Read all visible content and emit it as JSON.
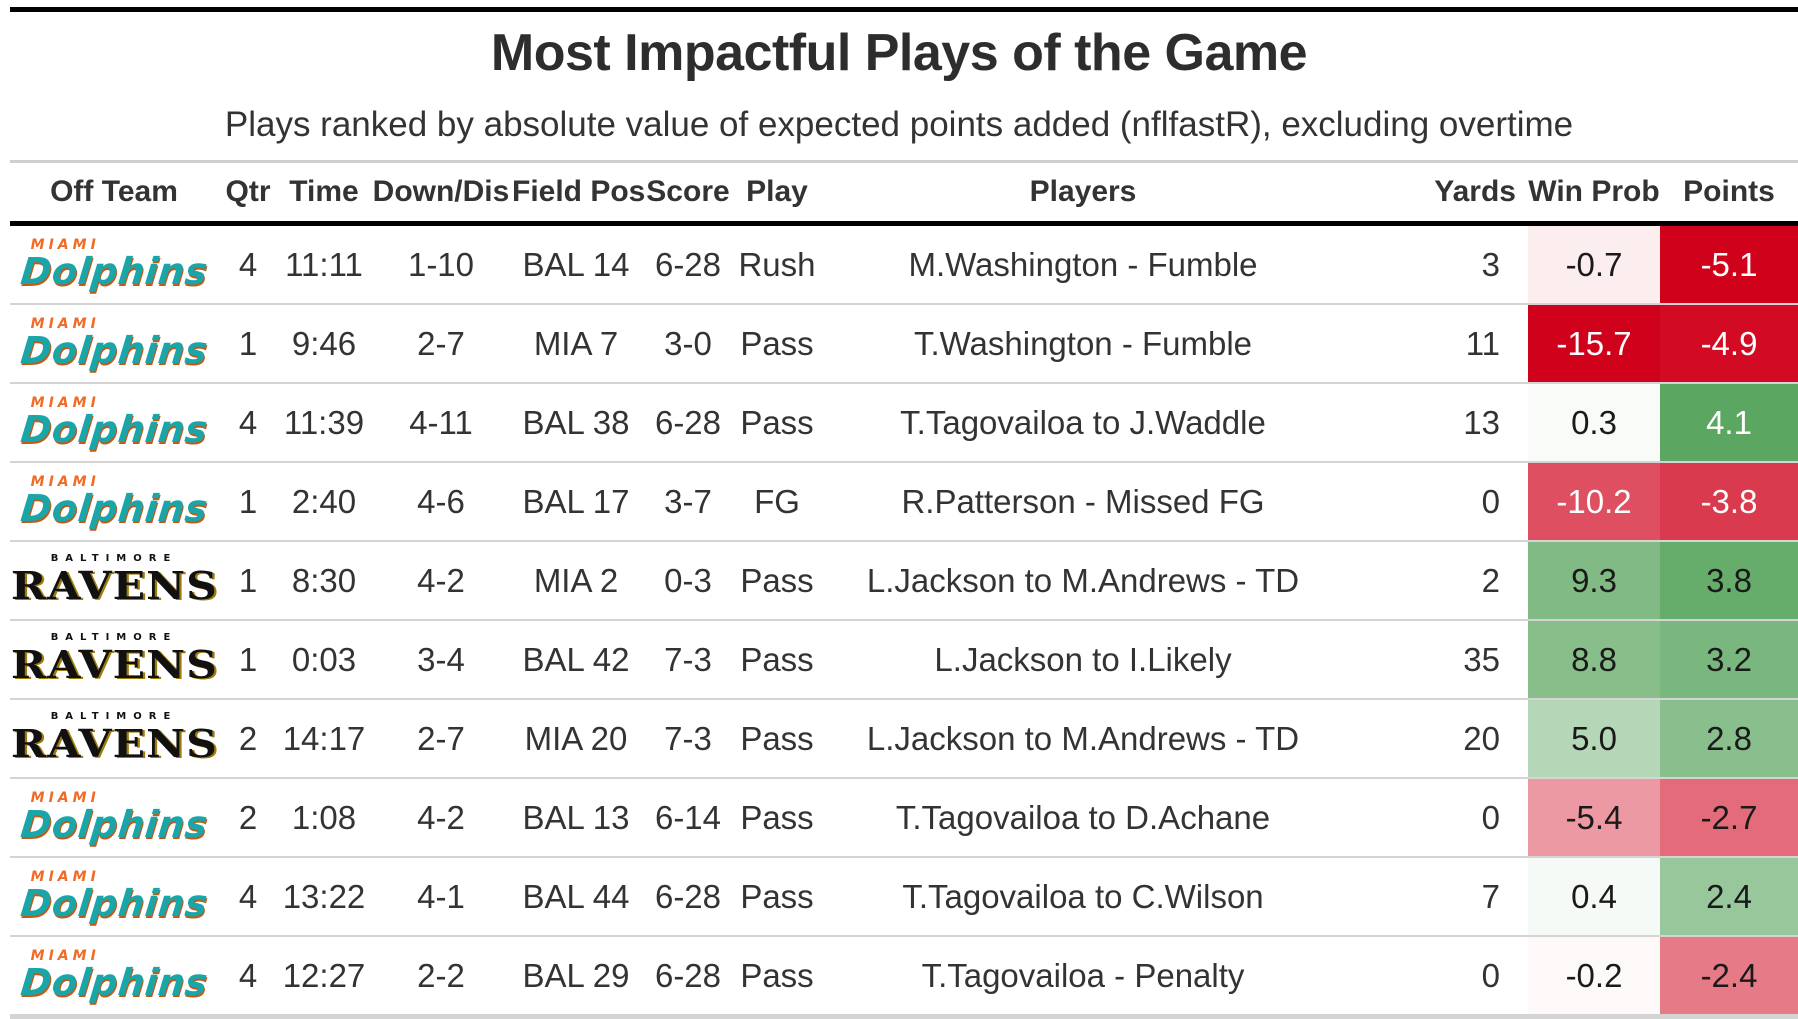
{
  "title": "Most Impactful Plays of the Game",
  "subtitle": "Plays ranked by absolute value of expected points added (nflfastR), excluding overtime",
  "columns": [
    "Off Team",
    "Qtr",
    "Time",
    "Down/Dis",
    "Field Pos",
    "Score",
    "Play",
    "Players",
    "Yards",
    "Win Prob",
    "Points"
  ],
  "team_logos": {
    "MIA": {
      "top": "MIAMI",
      "word": "Dolphins",
      "color": "#1aa5a9",
      "accent": "#f26a24"
    },
    "BAL": {
      "top": "BALTIMORE",
      "word": "RAVENS",
      "color": "#111111",
      "accent": "#9e7c0c"
    }
  },
  "color_scale": {
    "negative": "#d0021b",
    "neutral": "#ffffff",
    "positive": "#3a9440"
  },
  "chart_data": {
    "type": "table",
    "title": "Most Impactful Plays of the Game",
    "subtitle": "Plays ranked by absolute value of expected points added (nflfastR), excluding overtime",
    "rows": [
      {
        "team": "MIA",
        "qtr": "4",
        "time": "11:11",
        "down_dis": "1-10",
        "field_pos": "BAL 14",
        "score": "6-28",
        "play": "Rush",
        "players": "M.Washington - Fumble",
        "yards": "3",
        "win_prob": -0.7,
        "points": -5.1
      },
      {
        "team": "MIA",
        "qtr": "1",
        "time": "9:46",
        "down_dis": "2-7",
        "field_pos": "MIA 7",
        "score": "3-0",
        "play": "Pass",
        "players": "T.Washington - Fumble",
        "yards": "11",
        "win_prob": -15.7,
        "points": -4.9
      },
      {
        "team": "MIA",
        "qtr": "4",
        "time": "11:39",
        "down_dis": "4-11",
        "field_pos": "BAL 38",
        "score": "6-28",
        "play": "Pass",
        "players": "T.Tagovailoa to J.Waddle",
        "yards": "13",
        "win_prob": 0.3,
        "points": 4.1
      },
      {
        "team": "MIA",
        "qtr": "1",
        "time": "2:40",
        "down_dis": "4-6",
        "field_pos": "BAL 17",
        "score": "3-7",
        "play": "FG",
        "players": "R.Patterson - Missed FG",
        "yards": "0",
        "win_prob": -10.2,
        "points": -3.8
      },
      {
        "team": "BAL",
        "qtr": "1",
        "time": "8:30",
        "down_dis": "4-2",
        "field_pos": "MIA 2",
        "score": "0-3",
        "play": "Pass",
        "players": "L.Jackson to M.Andrews - TD",
        "yards": "2",
        "win_prob": 9.3,
        "points": 3.8
      },
      {
        "team": "BAL",
        "qtr": "1",
        "time": "0:03",
        "down_dis": "3-4",
        "field_pos": "BAL 42",
        "score": "7-3",
        "play": "Pass",
        "players": "L.Jackson to I.Likely",
        "yards": "35",
        "win_prob": 8.8,
        "points": 3.2
      },
      {
        "team": "BAL",
        "qtr": "2",
        "time": "14:17",
        "down_dis": "2-7",
        "field_pos": "MIA 20",
        "score": "7-3",
        "play": "Pass",
        "players": "L.Jackson to M.Andrews - TD",
        "yards": "20",
        "win_prob": 5.0,
        "points": 2.8
      },
      {
        "team": "MIA",
        "qtr": "2",
        "time": "1:08",
        "down_dis": "4-2",
        "field_pos": "BAL 13",
        "score": "6-14",
        "play": "Pass",
        "players": "T.Tagovailoa to D.Achane",
        "yards": "0",
        "win_prob": -5.4,
        "points": -2.7
      },
      {
        "team": "MIA",
        "qtr": "4",
        "time": "13:22",
        "down_dis": "4-1",
        "field_pos": "BAL 44",
        "score": "6-28",
        "play": "Pass",
        "players": "T.Tagovailoa to C.Wilson",
        "yards": "7",
        "win_prob": 0.4,
        "points": 2.4
      },
      {
        "team": "MIA",
        "qtr": "4",
        "time": "12:27",
        "down_dis": "2-2",
        "field_pos": "BAL 29",
        "score": "6-28",
        "play": "Pass",
        "players": "T.Tagovailoa - Penalty",
        "yards": "0",
        "win_prob": -0.2,
        "points": -2.4
      }
    ]
  }
}
